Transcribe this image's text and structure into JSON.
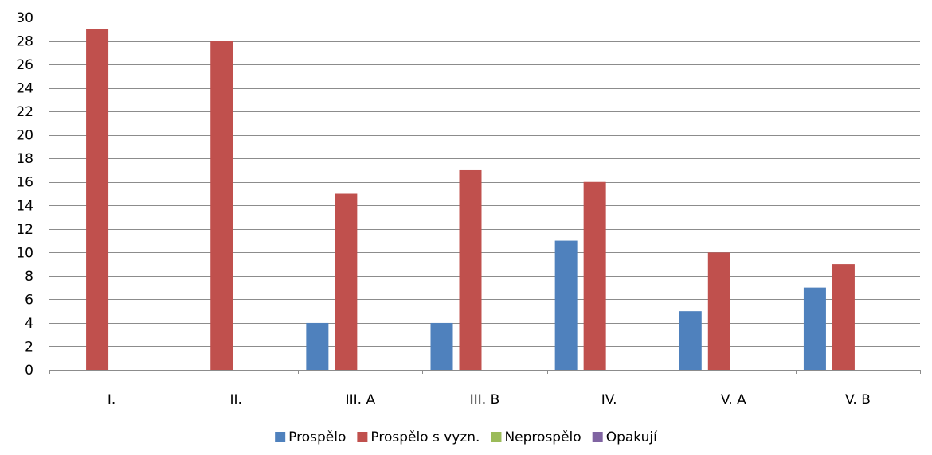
{
  "chart_data": {
    "type": "bar",
    "title": "",
    "xlabel": "",
    "ylabel": "",
    "ylim": [
      0,
      30
    ],
    "ytick_step": 2,
    "yticks": [
      "0",
      "2",
      "4",
      "6",
      "8",
      "10",
      "12",
      "14",
      "16",
      "18",
      "20",
      "22",
      "24",
      "26",
      "28",
      "30"
    ],
    "grid": true,
    "legend_position": "bottom",
    "categories": [
      "I.",
      "II.",
      "III. A",
      "III. B",
      "IV.",
      "V. A",
      "V. B"
    ],
    "series": [
      {
        "name": "Prospělo",
        "color": "#4F81BD",
        "values": [
          0,
          0,
          4,
          4,
          11,
          5,
          7
        ]
      },
      {
        "name": "Prospělo s vyzn.",
        "color": "#C0504D",
        "values": [
          29,
          28,
          15,
          17,
          16,
          10,
          9
        ]
      },
      {
        "name": "Neprospělo",
        "color": "#9BBB59",
        "values": [
          0,
          0,
          0,
          0,
          0,
          0,
          0
        ]
      },
      {
        "name": "Opakují",
        "color": "#8064A2",
        "values": [
          0,
          0,
          0,
          0,
          0,
          0,
          0
        ]
      }
    ]
  }
}
